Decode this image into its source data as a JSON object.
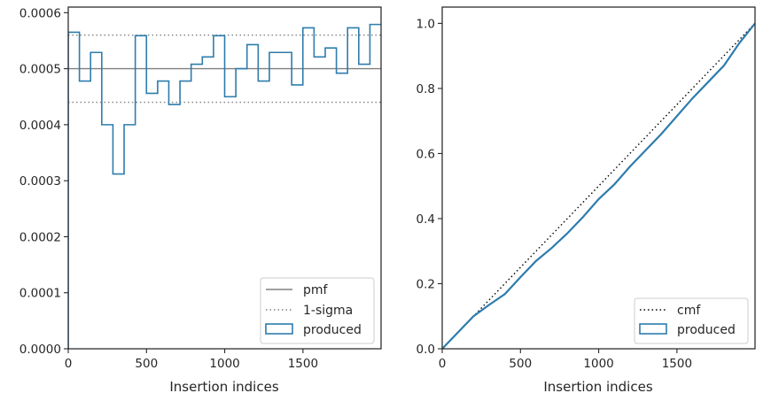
{
  "chart_data": [
    {
      "type": "line",
      "xlabel": "Insertion indices",
      "ylabel": "",
      "xlim": [
        0,
        1999
      ],
      "ylim": [
        0,
        0.00061
      ],
      "xticks": [
        0,
        500,
        1000,
        1500
      ],
      "xtick_labels": [
        "0",
        "500",
        "1000",
        "1500"
      ],
      "yticks": [
        0,
        0.0001,
        0.0002,
        0.0003,
        0.0004,
        0.0005,
        0.0006
      ],
      "ytick_labels": [
        "0.0000",
        "0.0001",
        "0.0002",
        "0.0003",
        "0.0004",
        "0.0005",
        "0.0006"
      ],
      "legend_position": "lower-right",
      "series": [
        {
          "name": "pmf",
          "kind": "hline",
          "y": 0.0005,
          "color": "#808080",
          "style": "solid"
        },
        {
          "name": "1-sigma",
          "kind": "hlines",
          "y": [
            0.00044,
            0.00056
          ],
          "color": "#808080",
          "style": "dotted"
        },
        {
          "name": "produced",
          "kind": "step-histogram",
          "color": "#2e7cad",
          "bin_width": 71.4,
          "values": [
            0.000565,
            0.000478,
            0.000529,
            0.0004,
            0.000312,
            0.0004,
            0.000559,
            0.000456,
            0.000478,
            0.000436,
            0.000478,
            0.000508,
            0.000521,
            0.000559,
            0.00045,
            0.0005,
            0.000543,
            0.000478,
            0.000529,
            0.000529,
            0.000471,
            0.000573,
            0.000521,
            0.000537,
            0.000492,
            0.000573,
            0.000508,
            0.000579
          ]
        }
      ]
    },
    {
      "type": "line",
      "xlabel": "Insertion indices",
      "ylabel": "",
      "xlim": [
        0,
        1999
      ],
      "ylim": [
        0,
        1.05
      ],
      "xticks": [
        0,
        500,
        1000,
        1500
      ],
      "xtick_labels": [
        "0",
        "500",
        "1000",
        "1500"
      ],
      "yticks": [
        0,
        0.2,
        0.4,
        0.6,
        0.8,
        1.0
      ],
      "ytick_labels": [
        "0.0",
        "0.2",
        "0.4",
        "0.6",
        "0.8",
        "1.0"
      ],
      "legend_position": "lower-right",
      "series": [
        {
          "name": "cmf",
          "kind": "line",
          "color": "#000000",
          "style": "dotted",
          "x": [
            0,
            1999
          ],
          "y": [
            0,
            1.0
          ]
        },
        {
          "name": "produced",
          "kind": "step-line",
          "color": "#2e7cad",
          "x": [
            0,
            100,
            200,
            300,
            400,
            500,
            600,
            700,
            800,
            900,
            1000,
            1100,
            1200,
            1300,
            1400,
            1500,
            1600,
            1700,
            1800,
            1900,
            1999
          ],
          "y": [
            0,
            0.05,
            0.1,
            0.135,
            0.168,
            0.22,
            0.27,
            0.31,
            0.355,
            0.405,
            0.46,
            0.505,
            0.56,
            0.61,
            0.66,
            0.715,
            0.77,
            0.82,
            0.87,
            0.94,
            1.0
          ]
        }
      ]
    }
  ]
}
